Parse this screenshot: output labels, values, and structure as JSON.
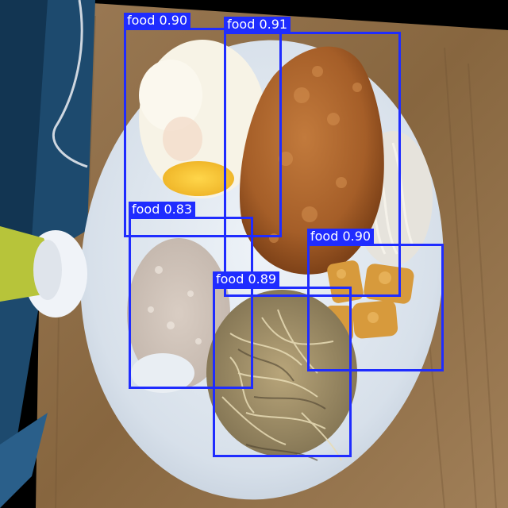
{
  "colors": {
    "box": "#1f2cff",
    "label_text": "#ffffff",
    "table": "#8a6a45",
    "plate": "#dfe6ef",
    "blue_object": "#1f4d72"
  },
  "detections": [
    {
      "class": "food",
      "score": "0.90",
      "text": "food 0.90"
    },
    {
      "class": "food",
      "score": "0.91",
      "text": "food 0.91"
    },
    {
      "class": "food",
      "score": "0.83",
      "text": "food 0.83"
    },
    {
      "class": "food",
      "score": "0.90",
      "text": "food 0.90"
    },
    {
      "class": "food",
      "score": "0.89",
      "text": "food 0.89"
    }
  ]
}
